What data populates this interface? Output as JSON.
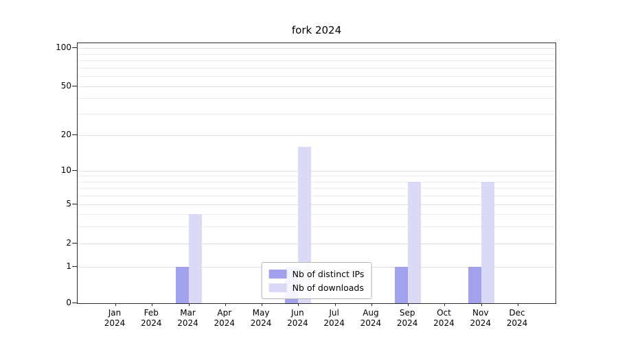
{
  "chart_data": {
    "type": "bar",
    "title": "fork 2024",
    "categories": [
      "Jan 2024",
      "Feb 2024",
      "Mar 2024",
      "Apr 2024",
      "May 2024",
      "Jun 2024",
      "Jul 2024",
      "Aug 2024",
      "Sep 2024",
      "Oct 2024",
      "Nov 2024",
      "Dec 2024"
    ],
    "series": [
      {
        "name": "Nb of distinct IPs",
        "color": "#a1a1ec",
        "values": [
          0,
          0,
          1,
          0,
          0,
          1,
          0,
          0,
          1,
          0,
          1,
          0
        ]
      },
      {
        "name": "Nb of downloads",
        "color": "#dadaf6",
        "values": [
          0,
          0,
          4,
          0,
          0,
          16,
          0,
          0,
          8,
          0,
          8,
          0
        ]
      }
    ],
    "y_ticks": [
      0,
      1,
      2,
      5,
      10,
      20,
      50,
      100
    ],
    "minor_gridlines": [
      3,
      4,
      6,
      7,
      8,
      9,
      30,
      40,
      60,
      70,
      80,
      90
    ],
    "ylim": [
      0,
      100
    ],
    "scale": "symlog",
    "grid": true,
    "legend_position": "lower center",
    "xlabel": "",
    "ylabel": ""
  }
}
